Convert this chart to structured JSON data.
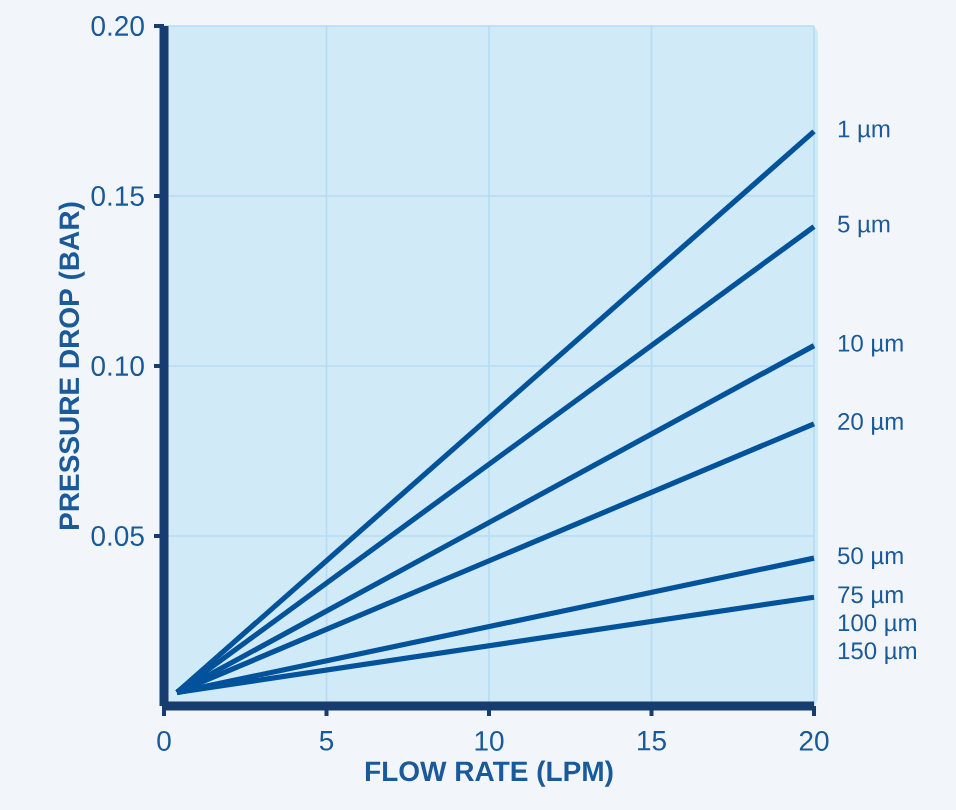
{
  "chart_data": {
    "type": "line",
    "xlabel": "FLOW RATE (LPM)",
    "ylabel": "PRESSURE DROP (BAR)",
    "x": [
      0.4,
      20
    ],
    "series": [
      {
        "name": "1 µm",
        "color": "#00529b",
        "values": [
          0.004,
          0.169
        ]
      },
      {
        "name": "5 µm",
        "color": "#00529b",
        "values": [
          0.004,
          0.141
        ]
      },
      {
        "name": "10 µm",
        "color": "#00529b",
        "values": [
          0.004,
          0.106
        ]
      },
      {
        "name": "20 µm",
        "color": "#00529b",
        "values": [
          0.004,
          0.083
        ]
      },
      {
        "name": "50 µm",
        "color": "#00529b",
        "values": [
          0.004,
          0.0435
        ]
      },
      {
        "name": "75 µm",
        "color": "#00529b",
        "values": [
          0.004,
          0.032
        ]
      }
    ],
    "annotations": [
      "100 µm",
      "150 µm"
    ],
    "xlim": [
      0,
      20
    ],
    "ylim": [
      0,
      0.2
    ],
    "xticks": [
      0,
      5,
      10,
      15,
      20
    ],
    "yticks": [
      0.05,
      {
        "value": 0.1,
        "label": "0.10"
      },
      0.15,
      {
        "value": 0.2,
        "label": "0.20"
      }
    ],
    "grid": true
  }
}
